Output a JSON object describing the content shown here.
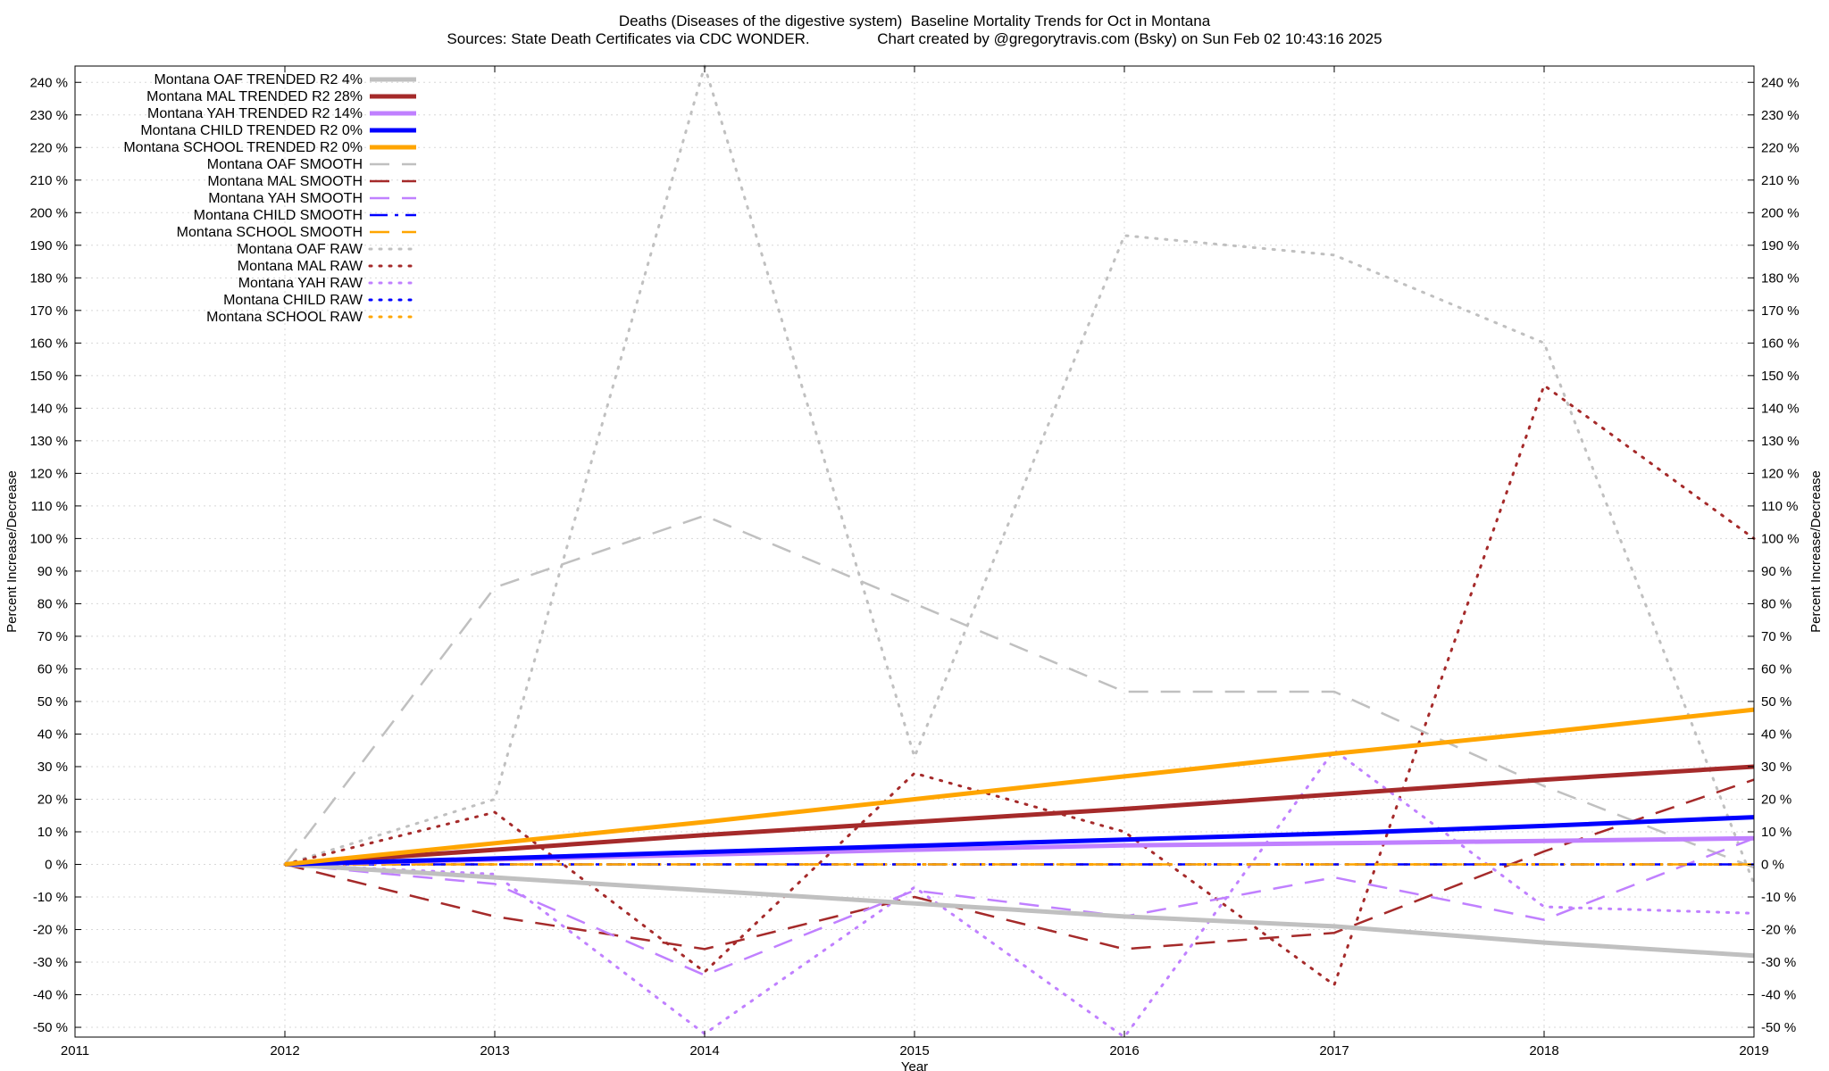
{
  "title_line1": "Deaths (Diseases of the digestive system)  Baseline Mortality Trends for Oct in Montana",
  "title_line2": "Sources: State Death Certificates via CDC WONDER.                Chart created by @gregorytravis.com (Bsky) on Sun Feb 02 10:43:16 2025",
  "chart_data": {
    "type": "line",
    "xlabel": "Year",
    "ylabel": "Percent Increase/Decrease",
    "y2label": "Percent Increase/Decrease",
    "xlim": [
      2011,
      2019
    ],
    "ylim": [
      -53,
      245
    ],
    "x_ticks": [
      "2011",
      "2012",
      "2013",
      "2014",
      "2015",
      "2016",
      "2017",
      "2018",
      "2019"
    ],
    "y_ticks": [
      -50,
      -40,
      -30,
      -20,
      -10,
      0,
      10,
      20,
      30,
      40,
      50,
      60,
      70,
      80,
      90,
      100,
      110,
      120,
      130,
      140,
      150,
      160,
      170,
      180,
      190,
      200,
      210,
      220,
      230,
      240
    ],
    "y_tick_suffix": " %",
    "grid": true,
    "legend_position": "top-left",
    "series": [
      {
        "name": "Montana OAF TRENDED R2   4%",
        "style": "solid",
        "color": "#c0c0c0",
        "x": [
          2012,
          2013,
          2014,
          2015,
          2016,
          2017,
          2018,
          2019
        ],
        "values": [
          0,
          -4,
          -8,
          -12,
          -16,
          -19,
          -24,
          -28
        ]
      },
      {
        "name": "Montana MAL TRENDED R2  28%",
        "style": "solid",
        "color": "#a52a2a",
        "x": [
          2012,
          2013,
          2014,
          2015,
          2016,
          2017,
          2018,
          2019
        ],
        "values": [
          0,
          4.5,
          9,
          13,
          17,
          21.5,
          26,
          30
        ]
      },
      {
        "name": "Montana YAH TRENDED R2  14%",
        "style": "solid",
        "color": "#c080ff",
        "x": [
          2012,
          2013,
          2014,
          2015,
          2016,
          2017,
          2018,
          2019
        ],
        "values": [
          0,
          1.5,
          3,
          4.5,
          5.8,
          6.5,
          7.2,
          8
        ]
      },
      {
        "name": "Montana CHILD TRENDED R2   0%",
        "style": "solid",
        "color": "#0000ff",
        "x": [
          2012,
          2013,
          2014,
          2015,
          2016,
          2017,
          2018,
          2019
        ],
        "values": [
          0,
          1.8,
          3.8,
          5.7,
          7.6,
          9.5,
          11.8,
          14.5
        ]
      },
      {
        "name": "Montana SCHOOL TRENDED R2   0%",
        "style": "solid",
        "color": "#ffa500",
        "x": [
          2012,
          2013,
          2014,
          2015,
          2016,
          2017,
          2018,
          2019
        ],
        "values": [
          0,
          6.5,
          13,
          20,
          27,
          34,
          40.5,
          47.5
        ]
      },
      {
        "name": "Montana OAF SMOOTH",
        "style": "dashed",
        "color": "#c0c0c0",
        "x": [
          2012,
          2013,
          2014,
          2015,
          2016,
          2017,
          2018,
          2019
        ],
        "values": [
          0,
          85,
          107,
          80,
          53,
          53,
          24,
          -1
        ]
      },
      {
        "name": "Montana MAL SMOOTH",
        "style": "dashed",
        "color": "#a52a2a",
        "x": [
          2012,
          2013,
          2014,
          2015,
          2016,
          2017,
          2018,
          2019
        ],
        "values": [
          0,
          -16,
          -26,
          -10,
          -26,
          -21,
          4,
          26
        ]
      },
      {
        "name": "Montana YAH SMOOTH",
        "style": "dashed",
        "color": "#c080ff",
        "x": [
          2012,
          2013,
          2014,
          2015,
          2016,
          2017,
          2018,
          2019
        ],
        "values": [
          0,
          -6,
          -34,
          -8,
          -16,
          -4,
          -17,
          8
        ]
      },
      {
        "name": "Montana CHILD SMOOTH",
        "style": "dashdot",
        "color": "#0000ff",
        "x": [
          2012,
          2013,
          2014,
          2015,
          2016,
          2017,
          2018,
          2019
        ],
        "values": [
          0,
          0,
          0,
          0,
          0,
          0,
          0,
          0
        ]
      },
      {
        "name": "Montana SCHOOL SMOOTH",
        "style": "dashed",
        "color": "#ffa500",
        "x": [
          2012,
          2013,
          2014,
          2015,
          2016,
          2017,
          2018,
          2019
        ],
        "values": [
          0,
          0,
          0,
          0,
          0,
          0,
          0,
          0
        ]
      },
      {
        "name": "Montana OAF RAW",
        "style": "dotted",
        "color": "#c0c0c0",
        "x": [
          2012,
          2013,
          2014,
          2015,
          2016,
          2017,
          2018,
          2019
        ],
        "values": [
          0,
          20,
          245,
          33,
          193,
          187,
          160,
          -6
        ]
      },
      {
        "name": "Montana MAL RAW",
        "style": "dotted",
        "color": "#a52a2a",
        "x": [
          2012,
          2013,
          2014,
          2015,
          2016,
          2017,
          2018,
          2019
        ],
        "values": [
          0,
          16,
          -33,
          28,
          10,
          -37,
          147,
          100
        ]
      },
      {
        "name": "Montana YAH RAW",
        "style": "dotted",
        "color": "#c080ff",
        "x": [
          2012,
          2013,
          2014,
          2015,
          2016,
          2017,
          2018,
          2019
        ],
        "values": [
          0,
          -3,
          -52,
          -7,
          -53,
          35,
          -13,
          -15
        ]
      },
      {
        "name": "Montana CHILD RAW",
        "style": "dotted",
        "color": "#0000ff",
        "x": [
          2012,
          2013,
          2014,
          2015,
          2016,
          2017,
          2018,
          2019
        ],
        "values": [
          0,
          0,
          0,
          0,
          0,
          0,
          0,
          0
        ]
      },
      {
        "name": "Montana SCHOOL RAW",
        "style": "dotted",
        "color": "#ffa500",
        "x": [
          2012,
          2013,
          2014,
          2015,
          2016,
          2017,
          2018,
          2019
        ],
        "values": [
          0,
          0,
          0,
          0,
          0,
          0,
          0,
          0
        ]
      }
    ]
  }
}
